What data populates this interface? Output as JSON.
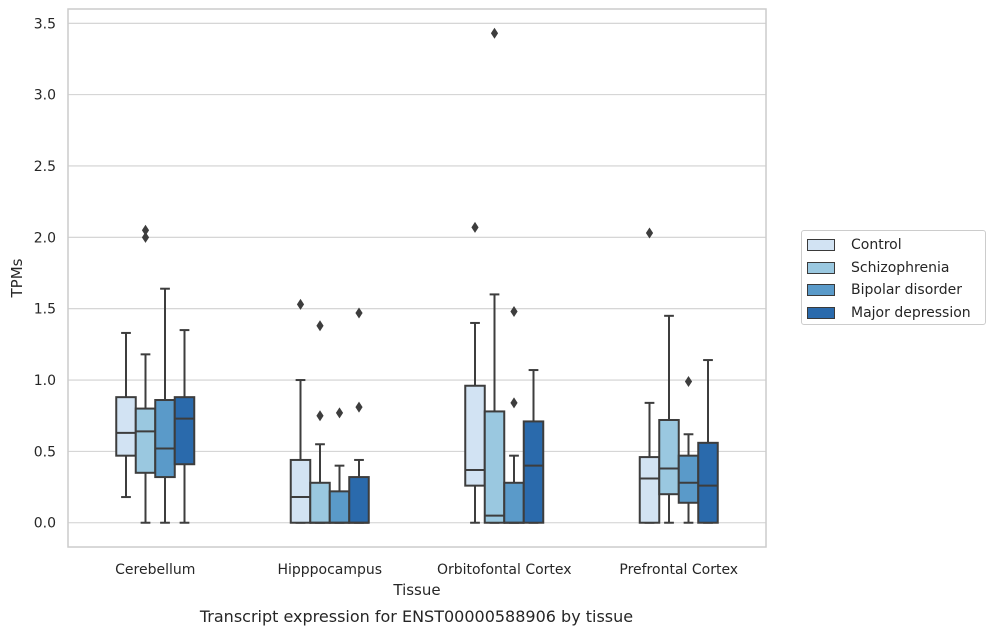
{
  "chart_data": {
    "type": "box",
    "title": "",
    "xlabel": "Tissue",
    "ylabel": "TPMs",
    "ylim": [
      -0.17,
      3.6
    ],
    "yticks": [
      "0.0",
      "0.5",
      "1.0",
      "1.5",
      "2.0",
      "2.5",
      "3.0",
      "3.5"
    ],
    "grid": "horizontal",
    "legend_position": "right",
    "categories": [
      "Cerebellum",
      "Hipppocampus",
      "Orbitofontal Cortex",
      "Prefrontal Cortex"
    ],
    "series": [
      {
        "name": "Control",
        "color": "#d2e3f3",
        "boxes": [
          {
            "whislo": 0.18,
            "q1": 0.47,
            "med": 0.63,
            "q3": 0.88,
            "whishi": 1.33,
            "fliers": []
          },
          {
            "whislo": 0.0,
            "q1": 0.0,
            "med": 0.18,
            "q3": 0.44,
            "whishi": 1.0,
            "fliers": [
              1.53
            ]
          },
          {
            "whislo": 0.0,
            "q1": 0.26,
            "med": 0.37,
            "q3": 0.96,
            "whishi": 1.4,
            "fliers": [
              2.07
            ]
          },
          {
            "whislo": 0.0,
            "q1": 0.0,
            "med": 0.31,
            "q3": 0.46,
            "whishi": 0.84,
            "fliers": [
              2.03
            ]
          }
        ]
      },
      {
        "name": "Schizophrenia",
        "color": "#9ac8e0",
        "boxes": [
          {
            "whislo": 0.0,
            "q1": 0.35,
            "med": 0.64,
            "q3": 0.8,
            "whishi": 1.18,
            "fliers": [
              2.0,
              2.05
            ]
          },
          {
            "whislo": 0.0,
            "q1": 0.0,
            "med": 0.0,
            "q3": 0.28,
            "whishi": 0.55,
            "fliers": [
              0.75,
              1.38
            ]
          },
          {
            "whislo": 0.0,
            "q1": 0.0,
            "med": 0.05,
            "q3": 0.78,
            "whishi": 1.6,
            "fliers": [
              3.43
            ]
          },
          {
            "whislo": 0.0,
            "q1": 0.2,
            "med": 0.38,
            "q3": 0.72,
            "whishi": 1.45,
            "fliers": []
          }
        ]
      },
      {
        "name": "Bipolar disorder",
        "color": "#5a9ac9",
        "boxes": [
          {
            "whislo": 0.0,
            "q1": 0.32,
            "med": 0.52,
            "q3": 0.86,
            "whishi": 1.64,
            "fliers": []
          },
          {
            "whislo": 0.0,
            "q1": 0.0,
            "med": 0.0,
            "q3": 0.22,
            "whishi": 0.4,
            "fliers": [
              0.77
            ]
          },
          {
            "whislo": 0.0,
            "q1": 0.0,
            "med": 0.0,
            "q3": 0.28,
            "whishi": 0.47,
            "fliers": [
              0.84,
              1.48
            ]
          },
          {
            "whislo": 0.0,
            "q1": 0.14,
            "med": 0.28,
            "q3": 0.47,
            "whishi": 0.62,
            "fliers": [
              0.99
            ]
          }
        ]
      },
      {
        "name": "Major depression",
        "color": "#2a6aac",
        "boxes": [
          {
            "whislo": 0.0,
            "q1": 0.41,
            "med": 0.73,
            "q3": 0.88,
            "whishi": 1.35,
            "fliers": []
          },
          {
            "whislo": 0.0,
            "q1": 0.0,
            "med": 0.0,
            "q3": 0.32,
            "whishi": 0.44,
            "fliers": [
              0.81,
              1.47
            ]
          },
          {
            "whislo": 0.0,
            "q1": 0.0,
            "med": 0.4,
            "q3": 0.71,
            "whishi": 1.07,
            "fliers": []
          },
          {
            "whislo": 0.0,
            "q1": 0.0,
            "med": 0.26,
            "q3": 0.56,
            "whishi": 1.14,
            "fliers": []
          }
        ]
      }
    ]
  },
  "caption": "Transcript expression for ENST00000588906 by tissue"
}
